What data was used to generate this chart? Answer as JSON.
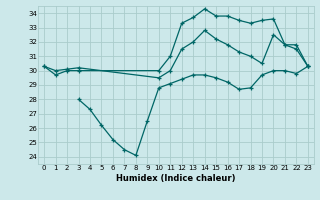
{
  "xlabel": "Humidex (Indice chaleur)",
  "bg_color": "#cce8ea",
  "line_color": "#006666",
  "xlim": [
    -0.5,
    23.5
  ],
  "ylim": [
    23.5,
    34.5
  ],
  "yticks": [
    24,
    25,
    26,
    27,
    28,
    29,
    30,
    31,
    32,
    33,
    34
  ],
  "xticks": [
    0,
    1,
    2,
    3,
    4,
    5,
    6,
    7,
    8,
    9,
    10,
    11,
    12,
    13,
    14,
    15,
    16,
    17,
    18,
    19,
    20,
    21,
    22,
    23
  ],
  "line1_x": [
    0,
    1,
    2,
    3,
    10,
    11,
    12,
    13,
    14,
    15,
    16,
    17,
    18,
    19,
    20,
    21,
    22,
    23
  ],
  "line1_y": [
    30.3,
    29.7,
    30.0,
    30.0,
    30.0,
    31.0,
    33.3,
    33.7,
    34.3,
    33.8,
    33.8,
    33.5,
    33.3,
    33.5,
    33.6,
    31.8,
    31.8,
    30.3
  ],
  "line2_x": [
    0,
    1,
    2,
    3,
    10,
    11,
    12,
    13,
    14,
    15,
    16,
    17,
    18,
    19,
    20,
    21,
    22,
    23
  ],
  "line2_y": [
    30.3,
    30.0,
    30.1,
    30.2,
    29.5,
    30.0,
    31.5,
    32.0,
    32.8,
    32.2,
    31.8,
    31.3,
    31.0,
    30.5,
    32.5,
    31.8,
    31.5,
    30.3
  ],
  "line3_x": [
    3,
    4,
    5,
    6,
    7,
    8,
    9,
    10,
    11,
    12,
    13,
    14,
    15,
    16,
    17,
    18,
    19,
    20,
    21,
    22,
    23
  ],
  "line3_y": [
    28.0,
    27.3,
    26.2,
    25.2,
    24.5,
    24.1,
    26.5,
    28.8,
    29.1,
    29.4,
    29.7,
    29.7,
    29.5,
    29.2,
    28.7,
    28.8,
    29.7,
    30.0,
    30.0,
    29.8,
    30.3
  ],
  "grid_color": "#aacccc",
  "marker": "+"
}
